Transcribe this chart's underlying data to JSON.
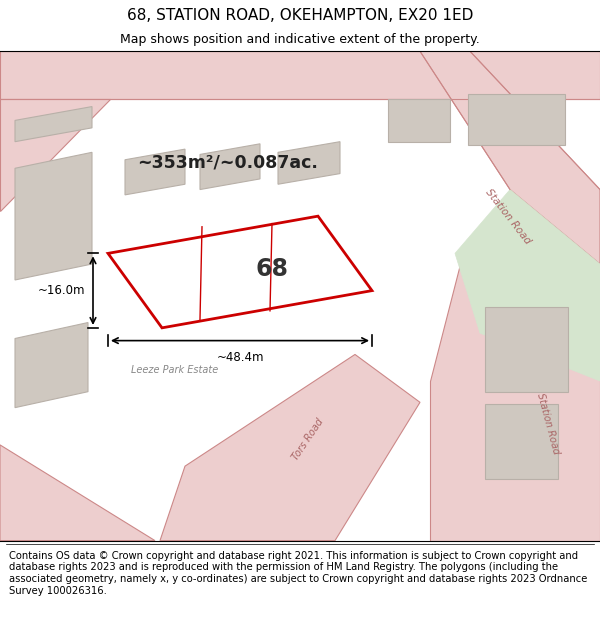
{
  "title": "68, STATION ROAD, OKEHAMPTON, EX20 1ED",
  "subtitle": "Map shows position and indicative extent of the property.",
  "footer": "Contains OS data © Crown copyright and database right 2021. This information is subject to Crown copyright and database rights 2023 and is reproduced with the permission of HM Land Registry. The polygons (including the associated geometry, namely x, y co-ordinates) are subject to Crown copyright and database rights 2023 Ordnance Survey 100026316.",
  "area_label": "~353m²/~0.087ac.",
  "property_number": "68",
  "dim_width": "~48.4m",
  "dim_height": "~16.0m",
  "map_bg": "#f2eded",
  "road_color": "#edcece",
  "road_line_color": "#cc8888",
  "property_fill": "#ffffff",
  "property_edge": "#cc0000",
  "building_fill": "#cfc8c0",
  "building_edge": "#b8b0a8",
  "green_fill": "#d5e5ce",
  "footer_fontsize": 7.2,
  "title_fontsize": 11,
  "subtitle_fontsize": 9
}
